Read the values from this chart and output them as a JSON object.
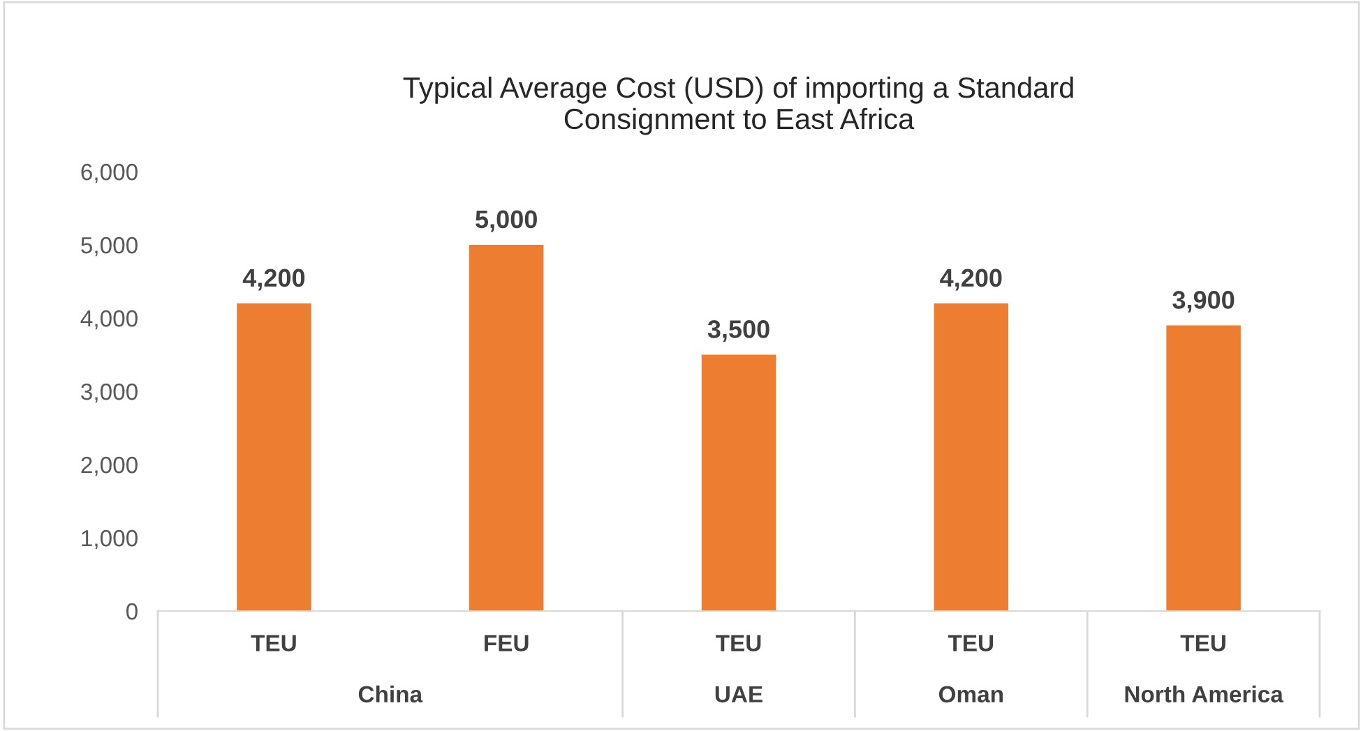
{
  "chart_data": {
    "type": "bar",
    "title": "Typical Average Cost (USD) of importing a Standard\nConsignment to East Africa",
    "categories": [
      "TEU",
      "FEU",
      "TEU",
      "TEU",
      "TEU"
    ],
    "values": [
      4200,
      5000,
      3500,
      4200,
      3900
    ],
    "color": "#ed7d31",
    "value_labels": [
      "4,200",
      "5,000",
      "3,500",
      "4,200",
      "3,900"
    ],
    "annotations": [
      "China",
      "UAE",
      "Oman",
      "North America"
    ],
    "ylim": [
      0,
      6000
    ],
    "yticks": [
      0,
      {
        "value": 1000,
        "label": "1,000"
      },
      {
        "value": 2000,
        "label": "2,000"
      },
      {
        "value": 3000,
        "label": "3,000"
      },
      {
        "value": 4000,
        "label": "4,000"
      },
      {
        "value": 5000,
        "label": "5,000"
      },
      {
        "value": 6000,
        "label": "6,000"
      }
    ],
    "grid": false
  }
}
